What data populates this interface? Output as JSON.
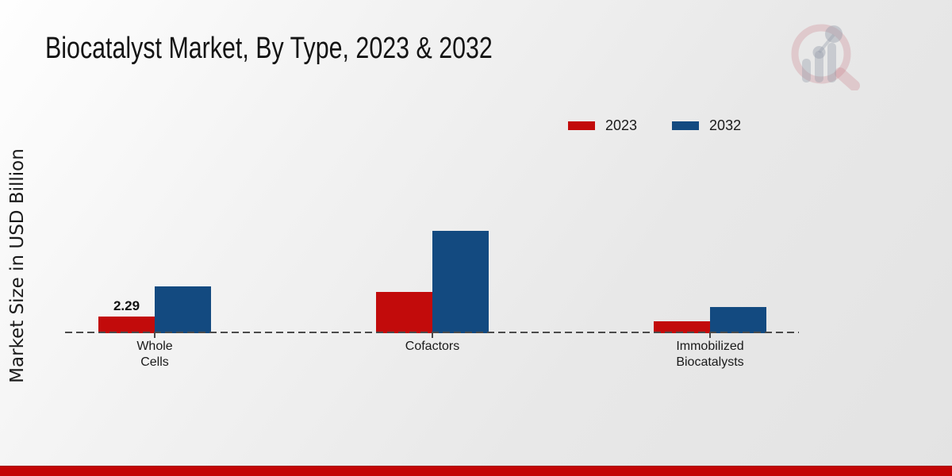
{
  "title": "Biocatalyst Market, By Type, 2023 & 2032",
  "y_axis_label": "Market Size in USD Billion",
  "legend": {
    "items": [
      {
        "label": "2023",
        "color": "#c20b0b"
      },
      {
        "label": "2032",
        "color": "#134a80"
      }
    ]
  },
  "chart_data": {
    "type": "bar",
    "title": "Biocatalyst Market, By Type, 2023 & 2032",
    "xlabel": "",
    "ylabel": "Market Size in USD Billion",
    "categories": [
      "Whole Cells",
      "Cofactors",
      "Immobilized Biocatalysts"
    ],
    "category_lines": [
      [
        "Whole",
        "Cells"
      ],
      [
        "Cofactors"
      ],
      [
        "Immobilized",
        "Biocatalysts"
      ]
    ],
    "series": [
      {
        "name": "2023",
        "color": "#c20b0b",
        "values": [
          2.29,
          5.7,
          1.6
        ]
      },
      {
        "name": "2032",
        "color": "#134a80",
        "values": [
          6.4,
          14.1,
          3.6
        ]
      }
    ],
    "value_labels": [
      {
        "series_index": 0,
        "category_index": 0,
        "text": "2.29"
      }
    ],
    "ylim": [
      0,
      16
    ],
    "grid": false,
    "axis_style": "dashed-baseline-only",
    "legend_position": "top-right"
  },
  "branding": {
    "logo": "market-research-magnifier-chart-watermark"
  },
  "footer": {
    "accent_color": "#c30505"
  }
}
